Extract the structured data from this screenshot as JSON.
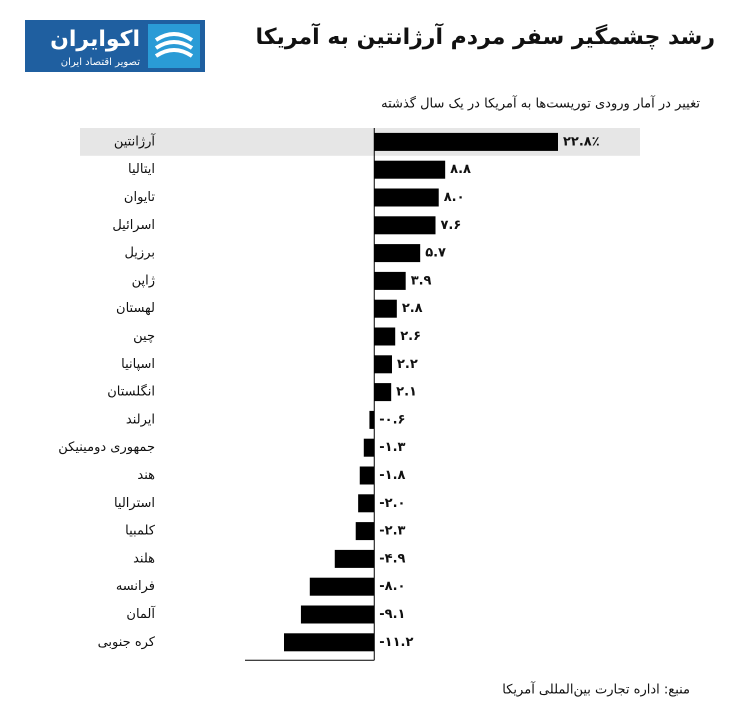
{
  "logo": {
    "name": "اکوایران",
    "tagline": "تصویر اقتصاد ایران"
  },
  "chart_data": {
    "type": "hbar",
    "title": "رشد چشمگیر سفر مردم آرژانتین به آمریکا",
    "subtitle": "تغییر در آمار ورودی توریست‌ها به آمریکا در یک سال گذشته",
    "source": "منبع: اداره تجارت بین‌المللی آمریکا",
    "categories": [
      "آرژانتین",
      "ایتالیا",
      "تایوان",
      "اسرائیل",
      "برزیل",
      "ژاپن",
      "لهستان",
      "چین",
      "اسپانیا",
      "انگلستان",
      "ایرلند",
      "جمهوری دومینیکن",
      "هند",
      "استرالیا",
      "کلمبیا",
      "هلند",
      "فرانسه",
      "آلمان",
      "کره جنوبی"
    ],
    "values": [
      22.8,
      8.8,
      8.0,
      7.6,
      5.7,
      3.9,
      2.8,
      2.6,
      2.2,
      2.1,
      -0.6,
      -1.3,
      -1.8,
      -2.0,
      -2.3,
      -4.9,
      -8.0,
      -9.1,
      -11.2
    ],
    "value_labels": [
      "۲۲.۸٪",
      "۸.۸",
      "۸.۰",
      "۷.۶",
      "۵.۷",
      "۳.۹",
      "۲.۸",
      "۲.۶",
      "۲.۲",
      "۲.۱",
      "-۰.۶",
      "-۱.۳",
      "-۱.۸",
      "-۲.۰",
      "-۲.۳",
      "-۴.۹",
      "-۸.۰",
      "-۹.۱",
      "-۱۱.۲"
    ],
    "color": "#000000",
    "highlight_color": "#e6e6e6"
  }
}
